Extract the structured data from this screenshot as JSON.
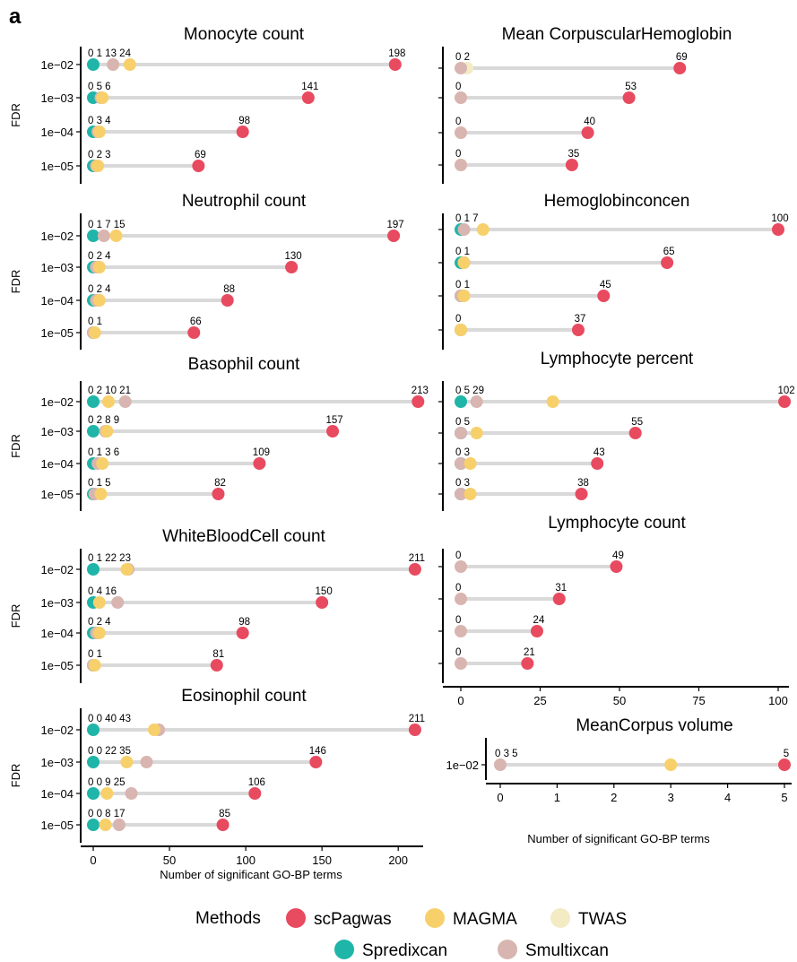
{
  "panel_label": "a",
  "colors": {
    "scPagwas": "#E84A5F",
    "MAGMA": "#F7D06B",
    "TWAS": "#F2EBC4",
    "Spredixcan": "#1FB5A8",
    "Smultixcan": "#D8B5B0",
    "segment": "#D9D9D9"
  },
  "legend": {
    "title": "Methods",
    "items": [
      {
        "name": "scPagwas",
        "color": "#E84A5F"
      },
      {
        "name": "MAGMA",
        "color": "#F7D06B"
      },
      {
        "name": "TWAS",
        "color": "#F2EBC4"
      },
      {
        "name": "Spredixcan",
        "color": "#1FB5A8"
      },
      {
        "name": "Smultixcan",
        "color": "#D8B5B0"
      }
    ]
  },
  "chart_data": [
    {
      "type": "lollipop",
      "title": "Monocyte count",
      "ylabel": "FDR",
      "xlabel": "",
      "column": "left",
      "categories": [
        "1e−02",
        "1e−03",
        "1e−04",
        "1e−05"
      ],
      "series": [
        {
          "name": "Spredixcan",
          "values": [
            0,
            0,
            0,
            0
          ]
        },
        {
          "name": "Smultixcan",
          "values": [
            13,
            5,
            3,
            2
          ]
        },
        {
          "name": "MAGMA",
          "values": [
            24,
            6,
            4,
            3
          ]
        },
        {
          "name": "scPagwas",
          "values": [
            198,
            141,
            98,
            69
          ]
        }
      ],
      "labels": [
        "0 1  13  24",
        "0 5 6",
        "0 3 4",
        "0 2 3"
      ]
    },
    {
      "type": "lollipop",
      "title": "Neutrophil count",
      "ylabel": "FDR",
      "xlabel": "",
      "column": "left",
      "categories": [
        "1e−02",
        "1e−03",
        "1e−04",
        "1e−05"
      ],
      "series": [
        {
          "name": "Spredixcan",
          "values": [
            0,
            0,
            0,
            0
          ]
        },
        {
          "name": "Smultixcan",
          "values": [
            7,
            2,
            2,
            0
          ]
        },
        {
          "name": "MAGMA",
          "values": [
            15,
            4,
            4,
            1
          ]
        },
        {
          "name": "scPagwas",
          "values": [
            197,
            130,
            88,
            66
          ]
        }
      ],
      "labels": [
        "0 1  7  15",
        "0  2  4",
        "0  2  4",
        "0       1"
      ]
    },
    {
      "type": "lollipop",
      "title": "Basophil count",
      "ylabel": "FDR",
      "xlabel": "",
      "column": "left",
      "categories": [
        "1e−02",
        "1e−03",
        "1e−04",
        "1e−05"
      ],
      "series": [
        {
          "name": "Spredixcan",
          "values": [
            0,
            0,
            0,
            0
          ]
        },
        {
          "name": "Smultixcan",
          "values": [
            21,
            8,
            3,
            1
          ]
        },
        {
          "name": "MAGMA",
          "values": [
            10,
            9,
            6,
            5
          ]
        },
        {
          "name": "scPagwas",
          "values": [
            213,
            157,
            109,
            82
          ]
        }
      ],
      "labels": [
        "0 2 10  21",
        "0 2 8 9",
        "0 1 3 6",
        "0 1 5"
      ]
    },
    {
      "type": "lollipop",
      "title": "WhiteBloodCell count",
      "ylabel": "FDR",
      "xlabel": "",
      "column": "left",
      "categories": [
        "1e−02",
        "1e−03",
        "1e−04",
        "1e−05"
      ],
      "series": [
        {
          "name": "Spredixcan",
          "values": [
            0,
            0,
            0,
            0
          ]
        },
        {
          "name": "MAGMA",
          "values": [
            22,
            4,
            4,
            1
          ]
        },
        {
          "name": "Smultixcan",
          "values": [
            23,
            16,
            2,
            0
          ]
        },
        {
          "name": "scPagwas",
          "values": [
            211,
            150,
            98,
            81
          ]
        }
      ],
      "labels": [
        "0 1  22 23",
        "0  4  16",
        "0 2 4",
        "0       1"
      ]
    },
    {
      "type": "lollipop",
      "title": "Eosinophil count",
      "ylabel": "FDR",
      "xlabel": "Number of significant GO-BP terms",
      "column": "left",
      "categories": [
        "1e−02",
        "1e−03",
        "1e−04",
        "1e−05"
      ],
      "series": [
        {
          "name": "Spredixcan",
          "values": [
            0,
            0,
            0,
            0
          ]
        },
        {
          "name": "MAGMA",
          "values": [
            40,
            22,
            9,
            8
          ]
        },
        {
          "name": "Smultixcan",
          "values": [
            43,
            35,
            25,
            17
          ]
        },
        {
          "name": "scPagwas",
          "values": [
            211,
            146,
            106,
            85
          ]
        }
      ],
      "labels": [
        "0 0  40 43",
        "0 0  22  35",
        "0 0 9  25",
        "0 0 8  17"
      ],
      "xticks": [
        0,
        50,
        100,
        150,
        200
      ],
      "xlim": [
        0,
        220
      ]
    },
    {
      "type": "lollipop",
      "title": "Mean CorpuscularHemoglobin",
      "ylabel": "",
      "xlabel": "",
      "column": "right",
      "categories": [
        "1e−02",
        "1e−03",
        "1e−04",
        "1e−05"
      ],
      "series": [
        {
          "name": "Smultixcan",
          "values": [
            0,
            0,
            0,
            0
          ]
        },
        {
          "name": "TWAS",
          "values": [
            2,
            0,
            0,
            0
          ]
        },
        {
          "name": "scPagwas",
          "values": [
            69,
            53,
            40,
            35
          ]
        }
      ],
      "labels": [
        "0 2",
        "0",
        "0",
        "0"
      ]
    },
    {
      "type": "lollipop",
      "title": "Hemoglobinconcen",
      "ylabel": "",
      "xlabel": "",
      "column": "right",
      "categories": [
        "1e−02",
        "1e−03",
        "1e−04",
        "1e−05"
      ],
      "series": [
        {
          "name": "Spredixcan",
          "values": [
            0,
            0,
            0,
            0
          ]
        },
        {
          "name": "Smultixcan",
          "values": [
            1,
            1,
            0,
            0
          ]
        },
        {
          "name": "MAGMA",
          "values": [
            7,
            1,
            1,
            0
          ]
        },
        {
          "name": "scPagwas",
          "values": [
            100,
            65,
            45,
            37
          ]
        }
      ],
      "labels": [
        "0 1    7",
        "0 1",
        "0 1",
        "0"
      ]
    },
    {
      "type": "lollipop",
      "title": "Lymphocyte percent",
      "ylabel": "",
      "xlabel": "",
      "column": "right",
      "categories": [
        "1e−02",
        "1e−03",
        "1e−04",
        "1e−05"
      ],
      "series": [
        {
          "name": "Spredixcan",
          "values": [
            0,
            0,
            0,
            0
          ]
        },
        {
          "name": "Smultixcan",
          "values": [
            5,
            0,
            0,
            0
          ]
        },
        {
          "name": "MAGMA",
          "values": [
            29,
            5,
            3,
            3
          ]
        },
        {
          "name": "scPagwas",
          "values": [
            102,
            55,
            43,
            38
          ]
        }
      ],
      "labels": [
        "0   5   29",
        "0   5",
        "0  3",
        "0  3"
      ]
    },
    {
      "type": "lollipop",
      "title": "Lymphocyte count",
      "ylabel": "",
      "xlabel": "",
      "column": "right",
      "categories": [
        "1e−02",
        "1e−03",
        "1e−04",
        "1e−05"
      ],
      "series": [
        {
          "name": "Smultixcan",
          "values": [
            0,
            0,
            0,
            0
          ]
        },
        {
          "name": "scPagwas",
          "values": [
            49,
            31,
            24,
            21
          ]
        }
      ],
      "labels": [
        "0",
        "0",
        "0",
        "0"
      ],
      "xticks": [
        0,
        25,
        50,
        75,
        100
      ],
      "xlim": [
        0,
        105
      ]
    },
    {
      "type": "lollipop",
      "title": "MeanCorpus volume",
      "ylabel": "",
      "xlabel": "Number of significant GO-BP terms",
      "column": "right",
      "categories": [
        "1e−02"
      ],
      "series": [
        {
          "name": "Smultixcan",
          "values": [
            0
          ]
        },
        {
          "name": "MAGMA",
          "values": [
            3
          ]
        },
        {
          "name": "scPagwas",
          "values": [
            5
          ]
        }
      ],
      "labels": [
        "0   3   5"
      ],
      "xticks": [
        0,
        1,
        2,
        3,
        4,
        5
      ],
      "xlim": [
        0,
        5
      ]
    }
  ]
}
